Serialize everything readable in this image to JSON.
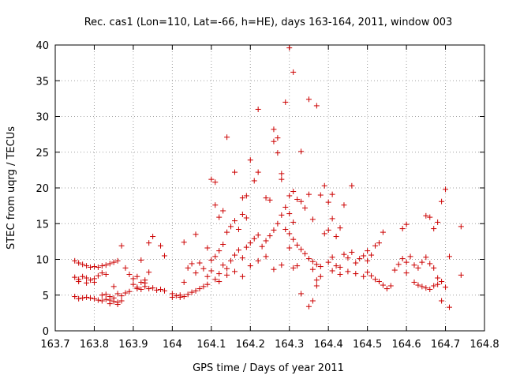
{
  "chart_data": {
    "type": "scatter",
    "title": "Rec. cas1 (Lon=110, Lat=-66, h=HE), days 163-164, 2011, window 003",
    "xlabel": "GPS time / Days of year 2011",
    "ylabel": "STEC from uqrg / TECUs",
    "xlim": [
      163.7,
      164.8
    ],
    "ylim": [
      0,
      40
    ],
    "xticks": [
      163.7,
      163.8,
      163.9,
      164.0,
      164.1,
      164.2,
      164.3,
      164.4,
      164.5,
      164.6,
      164.7,
      164.8
    ],
    "xtick_labels": [
      "163.7",
      "163.8",
      "163.9",
      "164",
      "164.1",
      "164.2",
      "164.3",
      "164.4",
      "164.5",
      "164.6",
      "164.7",
      "164.8"
    ],
    "yticks": [
      0,
      5,
      10,
      15,
      20,
      25,
      30,
      35,
      40
    ],
    "ytick_labels": [
      "0",
      "5",
      "10",
      "15",
      "20",
      "25",
      "30",
      "35",
      "40"
    ],
    "grid": true,
    "marker": "+",
    "color": "#cc0000",
    "points": [
      [
        163.75,
        9.8
      ],
      [
        163.76,
        9.5
      ],
      [
        163.77,
        9.3
      ],
      [
        163.78,
        9.1
      ],
      [
        163.79,
        8.9
      ],
      [
        163.8,
        9.0
      ],
      [
        163.81,
        8.9
      ],
      [
        163.82,
        9.1
      ],
      [
        163.83,
        9.2
      ],
      [
        163.84,
        9.4
      ],
      [
        163.85,
        9.6
      ],
      [
        163.86,
        9.8
      ],
      [
        163.75,
        7.5
      ],
      [
        163.76,
        7.2
      ],
      [
        163.77,
        7.6
      ],
      [
        163.78,
        7.4
      ],
      [
        163.79,
        7.1
      ],
      [
        163.8,
        6.8
      ],
      [
        163.81,
        7.7
      ],
      [
        163.82,
        8.1
      ],
      [
        163.83,
        7.9
      ],
      [
        163.76,
        6.9
      ],
      [
        163.78,
        6.7
      ],
      [
        163.8,
        7.3
      ],
      [
        163.75,
        4.8
      ],
      [
        163.76,
        4.5
      ],
      [
        163.77,
        4.6
      ],
      [
        163.78,
        4.7
      ],
      [
        163.79,
        4.6
      ],
      [
        163.8,
        4.5
      ],
      [
        163.81,
        4.3
      ],
      [
        163.82,
        4.2
      ],
      [
        163.83,
        4.4
      ],
      [
        163.84,
        4.3
      ],
      [
        163.85,
        4.1
      ],
      [
        163.86,
        4.0
      ],
      [
        163.87,
        4.2
      ],
      [
        163.82,
        5.0
      ],
      [
        163.83,
        5.1
      ],
      [
        163.84,
        4.8
      ],
      [
        163.85,
        4.6
      ],
      [
        163.86,
        5.2
      ],
      [
        163.87,
        4.9
      ],
      [
        163.88,
        5.3
      ],
      [
        163.89,
        5.5
      ],
      [
        163.84,
        3.8
      ],
      [
        163.86,
        3.7
      ],
      [
        163.85,
        6.2
      ],
      [
        163.87,
        11.9
      ],
      [
        163.88,
        8.8
      ],
      [
        163.89,
        7.9
      ],
      [
        163.9,
        7.3
      ],
      [
        163.91,
        7.6
      ],
      [
        163.92,
        6.8
      ],
      [
        163.93,
        7.1
      ],
      [
        163.94,
        8.2
      ],
      [
        163.9,
        6.5
      ],
      [
        163.91,
        6.1
      ],
      [
        163.92,
        5.8
      ],
      [
        163.93,
        6.2
      ],
      [
        163.94,
        5.9
      ],
      [
        163.95,
        6.0
      ],
      [
        163.96,
        5.7
      ],
      [
        163.97,
        5.8
      ],
      [
        163.98,
        5.6
      ],
      [
        163.91,
        5.9
      ],
      [
        163.93,
        6.7
      ],
      [
        163.92,
        9.9
      ],
      [
        163.94,
        12.3
      ],
      [
        163.95,
        13.2
      ],
      [
        163.97,
        11.9
      ],
      [
        163.98,
        10.5
      ],
      [
        164.0,
        5.2
      ],
      [
        164.01,
        4.9
      ],
      [
        164.02,
        4.7
      ],
      [
        164.03,
        4.8
      ],
      [
        164.04,
        5.1
      ],
      [
        164.0,
        4.7
      ],
      [
        164.02,
        5.0
      ],
      [
        164.05,
        5.4
      ],
      [
        164.06,
        5.6
      ],
      [
        164.07,
        5.9
      ],
      [
        164.08,
        6.2
      ],
      [
        164.09,
        6.5
      ],
      [
        164.03,
        6.8
      ],
      [
        164.04,
        8.8
      ],
      [
        164.05,
        9.4
      ],
      [
        164.06,
        8.1
      ],
      [
        164.07,
        9.5
      ],
      [
        164.08,
        8.7
      ],
      [
        164.09,
        7.6
      ],
      [
        164.1,
        8.4
      ],
      [
        164.11,
        7.2
      ],
      [
        164.12,
        6.9
      ],
      [
        164.03,
        12.4
      ],
      [
        164.06,
        13.5
      ],
      [
        164.09,
        11.6
      ],
      [
        164.1,
        21.2
      ],
      [
        164.11,
        20.8
      ],
      [
        164.1,
        9.9
      ],
      [
        164.11,
        10.4
      ],
      [
        164.12,
        11.2
      ],
      [
        164.13,
        12.1
      ],
      [
        164.14,
        13.8
      ],
      [
        164.15,
        14.6
      ],
      [
        164.16,
        15.4
      ],
      [
        164.17,
        14.2
      ],
      [
        164.18,
        16.3
      ],
      [
        164.19,
        15.8
      ],
      [
        164.11,
        17.6
      ],
      [
        164.12,
        15.9
      ],
      [
        164.13,
        16.8
      ],
      [
        164.14,
        27.1
      ],
      [
        164.16,
        22.2
      ],
      [
        164.18,
        18.6
      ],
      [
        164.19,
        18.9
      ],
      [
        164.2,
        23.9
      ],
      [
        164.21,
        21.0
      ],
      [
        164.22,
        22.2
      ],
      [
        164.22,
        31.0
      ],
      [
        164.12,
        8.0
      ],
      [
        164.13,
        9.2
      ],
      [
        164.14,
        8.7
      ],
      [
        164.15,
        9.8
      ],
      [
        164.16,
        10.6
      ],
      [
        164.17,
        11.3
      ],
      [
        164.18,
        10.2
      ],
      [
        164.19,
        11.7
      ],
      [
        164.2,
        12.3
      ],
      [
        164.21,
        12.9
      ],
      [
        164.22,
        13.4
      ],
      [
        164.14,
        7.8
      ],
      [
        164.16,
        8.3
      ],
      [
        164.18,
        7.6
      ],
      [
        164.2,
        9.1
      ],
      [
        164.22,
        9.8
      ],
      [
        164.24,
        10.4
      ],
      [
        164.26,
        8.6
      ],
      [
        164.28,
        9.2
      ],
      [
        164.23,
        11.8
      ],
      [
        164.24,
        12.6
      ],
      [
        164.25,
        13.3
      ],
      [
        164.26,
        14.1
      ],
      [
        164.27,
        15.0
      ],
      [
        164.28,
        16.2
      ],
      [
        164.29,
        17.3
      ],
      [
        164.3,
        18.9
      ],
      [
        164.31,
        19.5
      ],
      [
        164.24,
        18.6
      ],
      [
        164.25,
        18.3
      ],
      [
        164.26,
        26.5
      ],
      [
        164.26,
        28.2
      ],
      [
        164.27,
        27.0
      ],
      [
        164.27,
        24.9
      ],
      [
        164.28,
        22.0
      ],
      [
        164.28,
        21.2
      ],
      [
        164.29,
        32.0
      ],
      [
        164.3,
        39.6
      ],
      [
        164.31,
        36.2
      ],
      [
        164.33,
        25.1
      ],
      [
        164.35,
        32.4
      ],
      [
        164.37,
        31.5
      ],
      [
        164.29,
        14.2
      ],
      [
        164.3,
        13.6
      ],
      [
        164.31,
        12.8
      ],
      [
        164.32,
        12.0
      ],
      [
        164.33,
        11.4
      ],
      [
        164.34,
        10.8
      ],
      [
        164.35,
        10.1
      ],
      [
        164.36,
        9.7
      ],
      [
        164.37,
        9.3
      ],
      [
        164.38,
        9.0
      ],
      [
        164.3,
        16.4
      ],
      [
        164.31,
        15.2
      ],
      [
        164.32,
        18.4
      ],
      [
        164.33,
        18.1
      ],
      [
        164.34,
        17.2
      ],
      [
        164.35,
        19.1
      ],
      [
        164.36,
        15.6
      ],
      [
        164.38,
        19.0
      ],
      [
        164.39,
        20.3
      ],
      [
        164.4,
        18.0
      ],
      [
        164.41,
        19.1
      ],
      [
        164.3,
        11.6
      ],
      [
        164.31,
        8.8
      ],
      [
        164.32,
        9.1
      ],
      [
        164.33,
        5.2
      ],
      [
        164.35,
        3.4
      ],
      [
        164.36,
        4.2
      ],
      [
        164.37,
        6.3
      ],
      [
        164.38,
        7.6
      ],
      [
        164.36,
        8.6
      ],
      [
        164.37,
        7.1
      ],
      [
        164.39,
        13.6
      ],
      [
        164.4,
        14.1
      ],
      [
        164.41,
        15.7
      ],
      [
        164.42,
        13.2
      ],
      [
        164.43,
        14.4
      ],
      [
        164.44,
        17.6
      ],
      [
        164.46,
        20.3
      ],
      [
        164.4,
        9.6
      ],
      [
        164.41,
        10.3
      ],
      [
        164.42,
        9.1
      ],
      [
        164.43,
        8.9
      ],
      [
        164.44,
        10.7
      ],
      [
        164.45,
        10.2
      ],
      [
        164.46,
        11.0
      ],
      [
        164.47,
        9.5
      ],
      [
        164.48,
        10.1
      ],
      [
        164.49,
        10.5
      ],
      [
        164.5,
        9.8
      ],
      [
        164.41,
        8.4
      ],
      [
        164.43,
        7.9
      ],
      [
        164.45,
        8.3
      ],
      [
        164.47,
        8.0
      ],
      [
        164.49,
        7.6
      ],
      [
        164.5,
        8.2
      ],
      [
        164.51,
        7.7
      ],
      [
        164.52,
        7.2
      ],
      [
        164.5,
        11.2
      ],
      [
        164.51,
        10.6
      ],
      [
        164.52,
        11.9
      ],
      [
        164.53,
        12.3
      ],
      [
        164.54,
        13.8
      ],
      [
        164.53,
        6.9
      ],
      [
        164.54,
        6.4
      ],
      [
        164.55,
        5.9
      ],
      [
        164.56,
        6.3
      ],
      [
        164.57,
        8.5
      ],
      [
        164.58,
        9.3
      ],
      [
        164.59,
        10.1
      ],
      [
        164.6,
        9.6
      ],
      [
        164.61,
        10.4
      ],
      [
        164.62,
        9.2
      ],
      [
        164.63,
        8.8
      ],
      [
        164.64,
        9.6
      ],
      [
        164.65,
        10.3
      ],
      [
        164.59,
        14.3
      ],
      [
        164.6,
        14.9
      ],
      [
        164.6,
        8.1
      ],
      [
        164.62,
        6.8
      ],
      [
        164.63,
        6.4
      ],
      [
        164.64,
        6.2
      ],
      [
        164.65,
        6.0
      ],
      [
        164.66,
        5.8
      ],
      [
        164.67,
        6.3
      ],
      [
        164.68,
        6.5
      ],
      [
        164.65,
        16.1
      ],
      [
        164.66,
        15.9
      ],
      [
        164.67,
        14.3
      ],
      [
        164.68,
        15.2
      ],
      [
        164.69,
        18.1
      ],
      [
        164.7,
        19.8
      ],
      [
        164.66,
        9.4
      ],
      [
        164.67,
        8.8
      ],
      [
        164.68,
        7.4
      ],
      [
        164.69,
        6.9
      ],
      [
        164.7,
        6.1
      ],
      [
        164.71,
        10.4
      ],
      [
        164.69,
        4.2
      ],
      [
        164.71,
        3.3
      ],
      [
        164.74,
        14.6
      ],
      [
        164.74,
        7.8
      ]
    ]
  }
}
